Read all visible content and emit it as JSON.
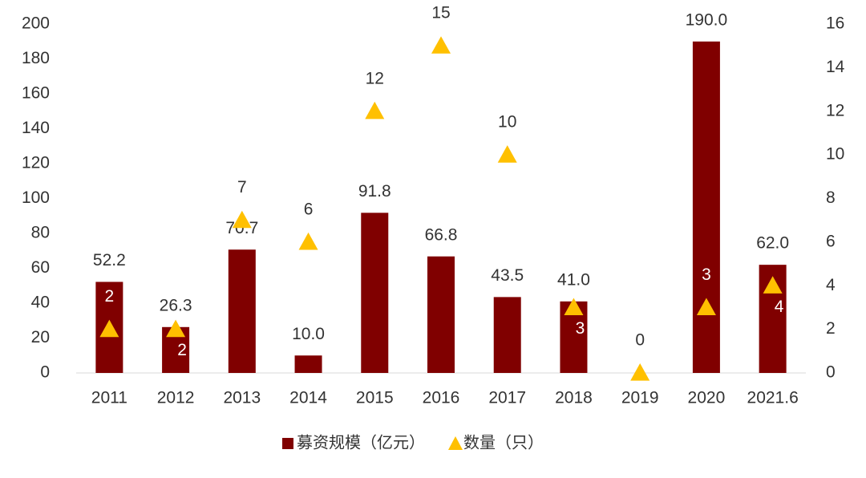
{
  "chart_data": {
    "type": "bar+scatter",
    "categories": [
      "2011",
      "2012",
      "2013",
      "2014",
      "2015",
      "2016",
      "2017",
      "2018",
      "2019",
      "2020",
      "2021.6"
    ],
    "series": [
      {
        "name": "募资规模（亿元）",
        "type": "bar",
        "color": "#800000",
        "values": [
          52.2,
          26.3,
          70.7,
          10.0,
          91.8,
          66.8,
          43.5,
          41.0,
          0,
          190.0,
          62.0
        ],
        "value_labels": [
          "52.2",
          "26.3",
          "70.7",
          "10.0",
          "91.8",
          "66.8",
          "43.5",
          "41.0",
          null,
          "190.0",
          "62.0"
        ]
      },
      {
        "name": "数量（只）",
        "type": "scatter",
        "axis": "y2",
        "color": "#FFC000",
        "values": [
          2,
          2,
          7,
          6,
          12,
          15,
          10,
          3,
          0,
          3,
          4
        ]
      }
    ],
    "ylim": [
      0,
      200
    ],
    "yticks": [
      0,
      20,
      40,
      60,
      80,
      100,
      120,
      140,
      160,
      180,
      200
    ],
    "y2lim": [
      0,
      16
    ],
    "y2ticks": [
      0,
      2,
      4,
      6,
      8,
      10,
      12,
      14,
      16
    ],
    "legend": "bottom"
  }
}
